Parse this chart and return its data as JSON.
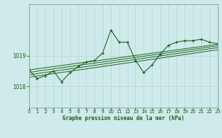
{
  "title": "Graphe pression niveau de la mer (hPa)",
  "background_color": "#ceeaea",
  "line_color": "#1a5e1a",
  "grid_color": "#b8d8d8",
  "border_color": "#8aaaaa",
  "xmin": 0,
  "xmax": 23,
  "ymin": 1017.3,
  "ymax": 1020.7,
  "yticks": [
    1018,
    1019
  ],
  "xticks": [
    0,
    1,
    2,
    3,
    4,
    5,
    6,
    7,
    8,
    9,
    10,
    11,
    12,
    13,
    14,
    15,
    16,
    17,
    18,
    19,
    20,
    21,
    22,
    23
  ],
  "series": [
    [
      0.0,
      1018.55
    ],
    [
      1.0,
      1018.25
    ],
    [
      2.0,
      1018.35
    ],
    [
      3.0,
      1018.5
    ],
    [
      4.0,
      1018.15
    ],
    [
      5.0,
      1018.45
    ],
    [
      6.0,
      1018.65
    ],
    [
      7.0,
      1018.8
    ],
    [
      8.0,
      1018.85
    ],
    [
      9.0,
      1019.1
    ],
    [
      10.0,
      1019.85
    ],
    [
      11.0,
      1019.45
    ],
    [
      12.0,
      1019.45
    ],
    [
      13.0,
      1018.85
    ],
    [
      14.0,
      1018.45
    ],
    [
      15.0,
      1018.7
    ],
    [
      16.0,
      1019.05
    ],
    [
      17.0,
      1019.35
    ],
    [
      18.0,
      1019.45
    ],
    [
      19.0,
      1019.5
    ],
    [
      20.0,
      1019.5
    ],
    [
      21.0,
      1019.55
    ],
    [
      22.0,
      1019.45
    ],
    [
      23.0,
      1019.4
    ]
  ],
  "trend_lines": [
    [
      [
        0,
        1018.3
      ],
      [
        23,
        1019.2
      ]
    ],
    [
      [
        0,
        1018.38
      ],
      [
        23,
        1019.27
      ]
    ],
    [
      [
        0,
        1018.46
      ],
      [
        23,
        1019.33
      ]
    ],
    [
      [
        0,
        1018.54
      ],
      [
        23,
        1019.38
      ]
    ]
  ]
}
